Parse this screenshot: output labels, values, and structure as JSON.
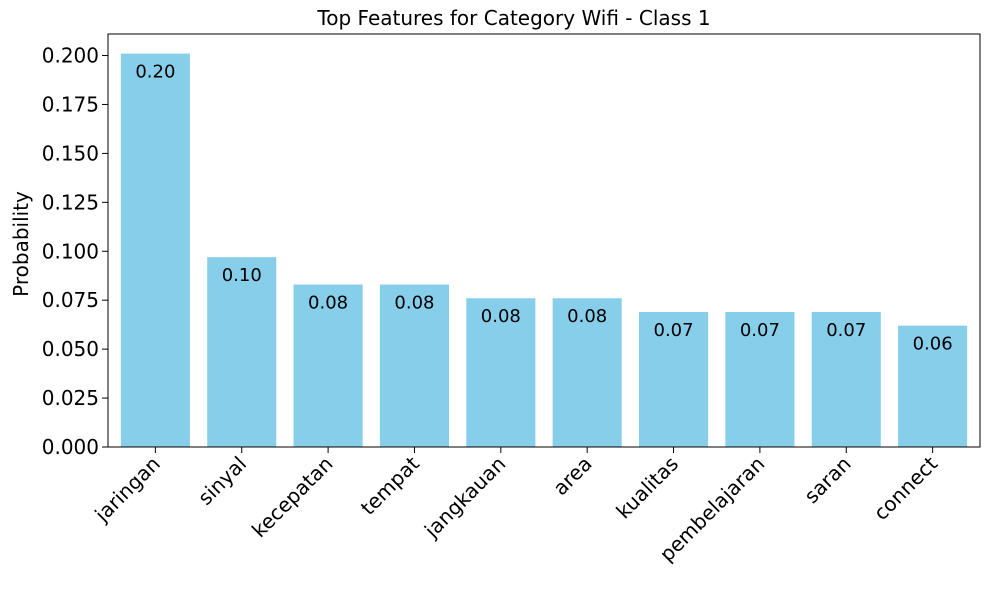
{
  "chart_data": {
    "type": "bar",
    "title": "Top Features for Category Wifi - Class 1",
    "xlabel": "",
    "ylabel": "Probability",
    "categories": [
      "jaringan",
      "sinyal",
      "kecepatan",
      "tempat",
      "jangkauan",
      "area",
      "kualitas",
      "pembelajaran",
      "saran",
      "connect"
    ],
    "values": [
      0.201,
      0.097,
      0.083,
      0.083,
      0.076,
      0.076,
      0.069,
      0.069,
      0.069,
      0.062
    ],
    "data_labels": [
      "0.20",
      "0.10",
      "0.08",
      "0.08",
      "0.08",
      "0.08",
      "0.07",
      "0.07",
      "0.07",
      "0.06"
    ],
    "ylim": [
      0,
      0.211
    ],
    "yticks": [
      0.0,
      0.025,
      0.05,
      0.075,
      0.1,
      0.125,
      0.15,
      0.175,
      0.2
    ],
    "ytick_labels": [
      "0.000",
      "0.025",
      "0.050",
      "0.075",
      "0.100",
      "0.125",
      "0.150",
      "0.175",
      "0.200"
    ],
    "bar_color": "#87CEEB",
    "grid": false,
    "x_tick_rotation_deg": 45
  }
}
